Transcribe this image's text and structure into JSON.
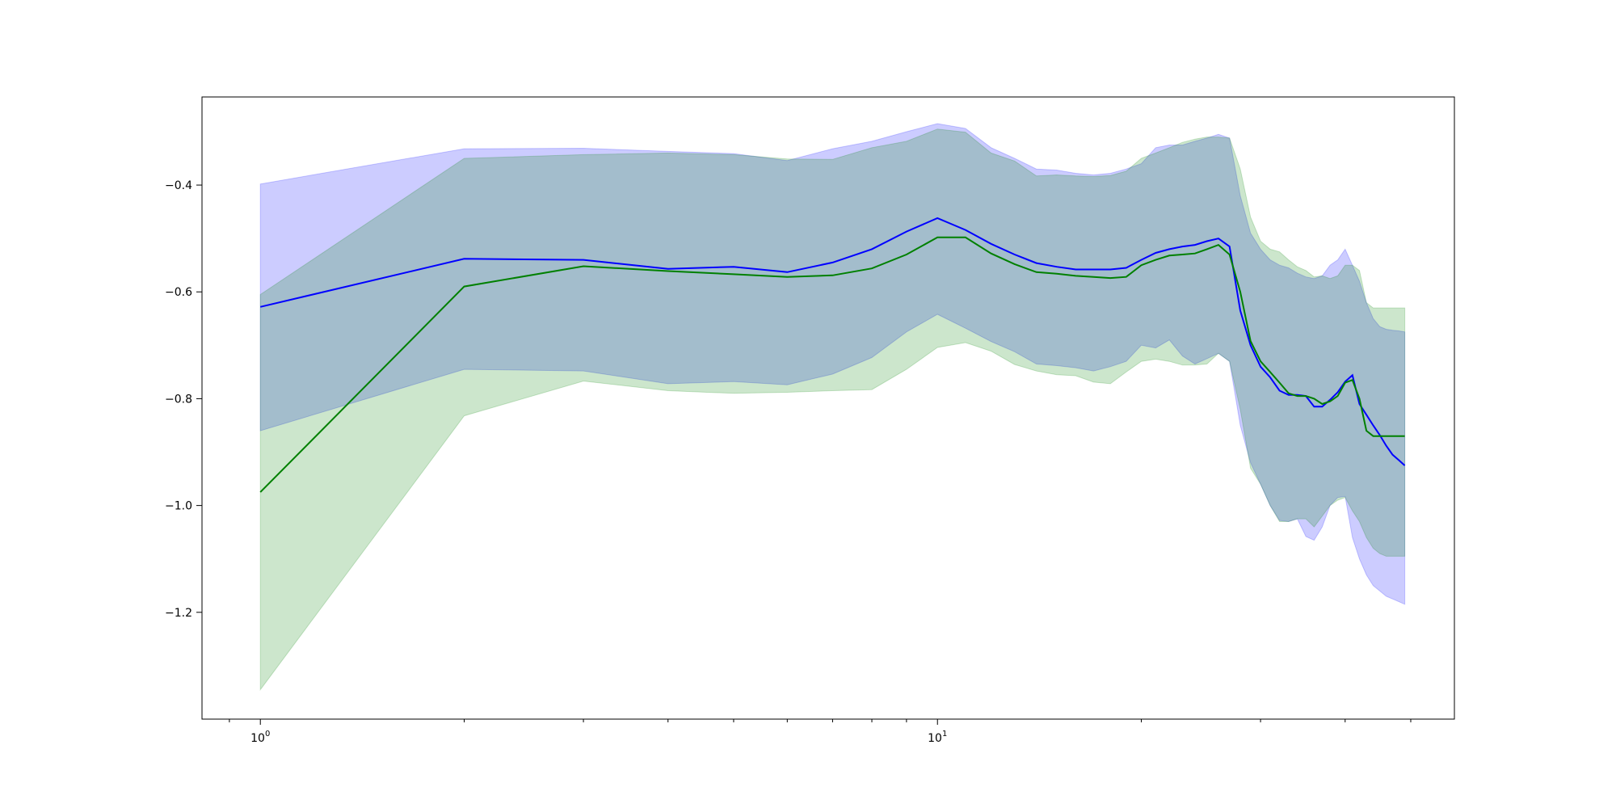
{
  "chart_data": {
    "type": "line",
    "x_scale": "log",
    "xlim": [
      0.82,
      58
    ],
    "ylim": [
      -1.4,
      -0.235
    ],
    "grid": false,
    "x_ticks": [
      {
        "value": 1,
        "base": "10",
        "exp": "0"
      },
      {
        "value": 10,
        "base": "10",
        "exp": "1"
      }
    ],
    "y_ticks": [
      {
        "value": -0.4,
        "label": "−0.4"
      },
      {
        "value": -0.6,
        "label": "−0.6"
      },
      {
        "value": -0.8,
        "label": "−0.8"
      },
      {
        "value": -1.0,
        "label": "−1.0"
      },
      {
        "value": -1.2,
        "label": "−1.2"
      }
    ],
    "x": [
      1,
      2,
      3,
      4,
      5,
      6,
      7,
      8,
      9,
      10,
      11,
      12,
      13,
      14,
      15,
      16,
      17,
      18,
      19,
      20,
      21,
      22,
      23,
      24,
      25,
      26,
      27,
      28,
      29,
      30,
      31,
      32,
      33,
      34,
      35,
      36,
      37,
      38,
      39,
      40,
      41,
      42,
      43,
      44,
      45,
      46,
      47,
      48,
      49
    ],
    "series": [
      {
        "color": "#0000ff",
        "band_color": "#0000ff",
        "mean": [
          -0.628,
          -0.538,
          -0.54,
          -0.557,
          -0.553,
          -0.563,
          -0.545,
          -0.52,
          -0.487,
          -0.462,
          -0.484,
          -0.51,
          -0.53,
          -0.546,
          -0.553,
          -0.558,
          -0.558,
          -0.558,
          -0.555,
          -0.54,
          -0.527,
          -0.52,
          -0.515,
          -0.512,
          -0.505,
          -0.5,
          -0.515,
          -0.635,
          -0.7,
          -0.74,
          -0.76,
          -0.785,
          -0.793,
          -0.793,
          -0.795,
          -0.815,
          -0.815,
          -0.802,
          -0.788,
          -0.768,
          -0.756,
          -0.81,
          -0.83,
          -0.85,
          -0.868,
          -0.888,
          -0.905,
          -0.915,
          -0.925
        ],
        "upper": [
          -0.398,
          -0.332,
          -0.331,
          -0.337,
          -0.341,
          -0.354,
          -0.332,
          -0.318,
          -0.3,
          -0.285,
          -0.294,
          -0.33,
          -0.35,
          -0.37,
          -0.372,
          -0.378,
          -0.381,
          -0.378,
          -0.37,
          -0.36,
          -0.33,
          -0.325,
          -0.325,
          -0.318,
          -0.312,
          -0.305,
          -0.312,
          -0.42,
          -0.49,
          -0.52,
          -0.54,
          -0.55,
          -0.555,
          -0.565,
          -0.572,
          -0.575,
          -0.57,
          -0.55,
          -0.54,
          -0.52,
          -0.55,
          -0.58,
          -0.62,
          -0.65,
          -0.665,
          -0.67,
          -0.672,
          -0.673,
          -0.675
        ],
        "lower": [
          -0.86,
          -0.745,
          -0.748,
          -0.772,
          -0.768,
          -0.774,
          -0.754,
          -0.723,
          -0.675,
          -0.642,
          -0.668,
          -0.693,
          -0.712,
          -0.735,
          -0.738,
          -0.742,
          -0.748,
          -0.74,
          -0.73,
          -0.7,
          -0.705,
          -0.69,
          -0.72,
          -0.735,
          -0.725,
          -0.715,
          -0.73,
          -0.85,
          -0.92,
          -0.96,
          -1.0,
          -1.028,
          -1.03,
          -1.025,
          -1.058,
          -1.065,
          -1.04,
          -1.0,
          -0.985,
          -0.983,
          -1.06,
          -1.1,
          -1.13,
          -1.15,
          -1.16,
          -1.17,
          -1.175,
          -1.18,
          -1.185
        ]
      },
      {
        "color": "#008000",
        "band_color": "#008000",
        "mean": [
          -0.975,
          -0.59,
          -0.552,
          -0.561,
          -0.567,
          -0.572,
          -0.569,
          -0.556,
          -0.53,
          -0.498,
          -0.498,
          -0.528,
          -0.548,
          -0.563,
          -0.566,
          -0.57,
          -0.572,
          -0.574,
          -0.572,
          -0.55,
          -0.54,
          -0.532,
          -0.53,
          -0.528,
          -0.52,
          -0.512,
          -0.53,
          -0.6,
          -0.692,
          -0.73,
          -0.75,
          -0.77,
          -0.79,
          -0.795,
          -0.795,
          -0.8,
          -0.81,
          -0.805,
          -0.795,
          -0.77,
          -0.765,
          -0.8,
          -0.86,
          -0.87,
          -0.87,
          -0.87,
          -0.87,
          -0.87,
          -0.87
        ],
        "upper": [
          -0.605,
          -0.35,
          -0.343,
          -0.34,
          -0.343,
          -0.351,
          -0.352,
          -0.33,
          -0.318,
          -0.295,
          -0.301,
          -0.34,
          -0.355,
          -0.383,
          -0.381,
          -0.383,
          -0.384,
          -0.382,
          -0.374,
          -0.35,
          -0.34,
          -0.33,
          -0.32,
          -0.314,
          -0.31,
          -0.31,
          -0.312,
          -0.37,
          -0.46,
          -0.505,
          -0.52,
          -0.525,
          -0.54,
          -0.553,
          -0.56,
          -0.572,
          -0.57,
          -0.575,
          -0.57,
          -0.55,
          -0.55,
          -0.56,
          -0.62,
          -0.63,
          -0.63,
          -0.63,
          -0.63,
          -0.63,
          -0.63
        ],
        "lower": [
          -1.345,
          -0.832,
          -0.767,
          -0.785,
          -0.79,
          -0.788,
          -0.785,
          -0.783,
          -0.745,
          -0.704,
          -0.695,
          -0.711,
          -0.736,
          -0.748,
          -0.755,
          -0.757,
          -0.769,
          -0.772,
          -0.75,
          -0.73,
          -0.726,
          -0.73,
          -0.737,
          -0.737,
          -0.735,
          -0.715,
          -0.73,
          -0.82,
          -0.93,
          -0.96,
          -1.0,
          -1.03,
          -1.03,
          -1.025,
          -1.025,
          -1.04,
          -1.02,
          -1.0,
          -0.99,
          -0.985,
          -1.01,
          -1.03,
          -1.06,
          -1.08,
          -1.09,
          -1.095,
          -1.095,
          -1.095,
          -1.095
        ]
      }
    ]
  }
}
